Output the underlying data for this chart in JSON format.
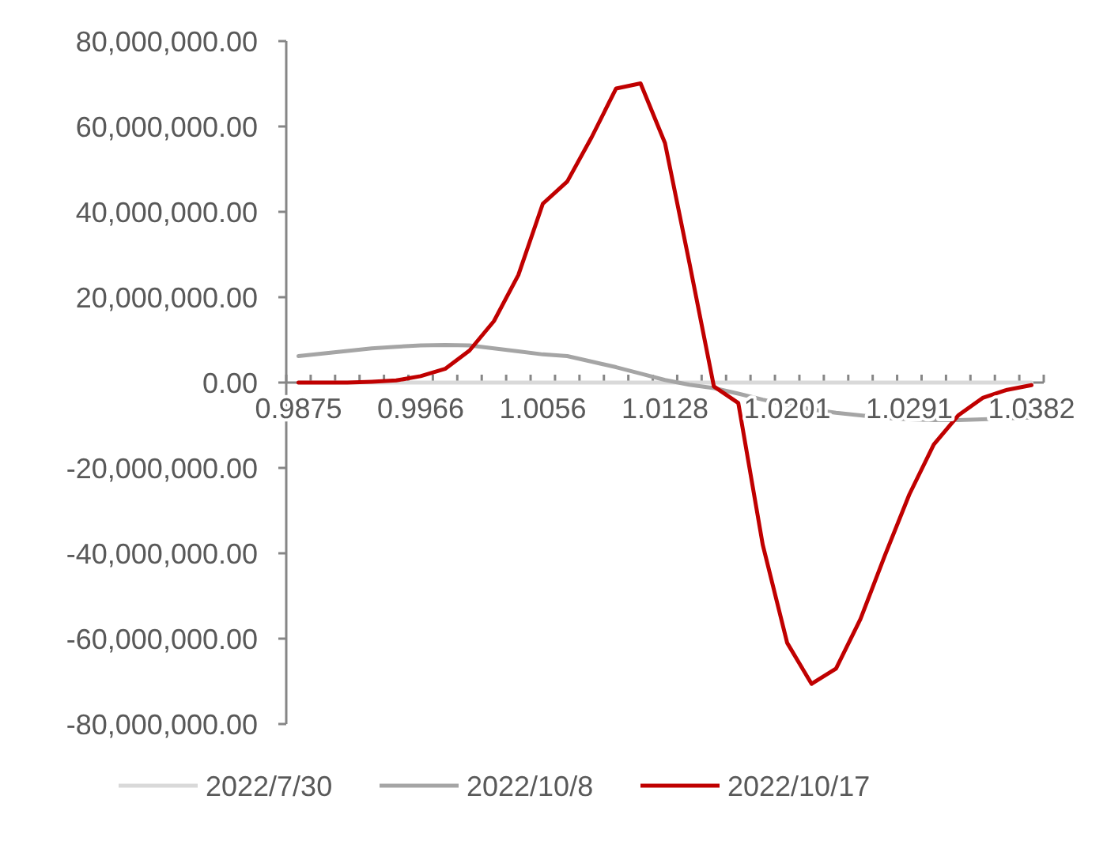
{
  "chart_data": {
    "type": "line",
    "categories": [
      "0.9875",
      null,
      null,
      null,
      null,
      "0.9966",
      null,
      null,
      null,
      null,
      "1.0056",
      null,
      null,
      null,
      null,
      "1.0128",
      null,
      null,
      null,
      null,
      "1.0201",
      null,
      null,
      null,
      null,
      "1.0291",
      null,
      null,
      null,
      null,
      "1.0382"
    ],
    "series": [
      {
        "name": "2022/7/30",
        "color": "#d9d9d9",
        "values": [
          0,
          0,
          0,
          0,
          0,
          0,
          0,
          0,
          0,
          0,
          0,
          0,
          0,
          0,
          0,
          0,
          0,
          0,
          0,
          0,
          0,
          0,
          0,
          0,
          0,
          0,
          0,
          0,
          0,
          0,
          0
        ]
      },
      {
        "name": "2022/10/8",
        "color": "#a5a5a5",
        "values": [
          6200000,
          6800000,
          7400000,
          8000000,
          8400000,
          8700000,
          8800000,
          8700000,
          8000000,
          7300000,
          6600000,
          6200000,
          4900000,
          3600000,
          2100000,
          600000,
          -500000,
          -1300000,
          -2600000,
          -4000000,
          -5200000,
          -6300000,
          -7100000,
          -7700000,
          -8300000,
          -8600000,
          -8800000,
          -8800000,
          -8600000,
          -8400000,
          -8200000
        ]
      },
      {
        "name": "2022/10/17",
        "color": "#c00000",
        "values": [
          0,
          0,
          0,
          200000,
          500000,
          1500000,
          3200000,
          7500000,
          14400000,
          25200000,
          41900000,
          47100000,
          57500000,
          68900000,
          70100000,
          56100000,
          28000000,
          -900000,
          -4800000,
          -38000000,
          -61000000,
          -70600000,
          -67000000,
          -55400000,
          -40500000,
          -26200000,
          -14500000,
          -7700000,
          -3600000,
          -1700000,
          -600000
        ]
      }
    ],
    "ylim": [
      -80000000,
      80000000
    ],
    "yticks": [
      {
        "value": -80000000,
        "label": "-80,000,000.00"
      },
      {
        "value": -60000000,
        "label": "-60,000,000.00"
      },
      {
        "value": -40000000,
        "label": "-40,000,000.00"
      },
      {
        "value": -20000000,
        "label": "-20,000,000.00"
      },
      {
        "value": 0,
        "label": "0.00"
      },
      {
        "value": 20000000,
        "label": "20,000,000.00"
      },
      {
        "value": 40000000,
        "label": "40,000,000.00"
      },
      {
        "value": 60000000,
        "label": "60,000,000.00"
      },
      {
        "value": 80000000,
        "label": "80,000,000.00"
      }
    ],
    "grid": false,
    "legend": "bottom",
    "marker": "none",
    "line_style": "solid"
  }
}
